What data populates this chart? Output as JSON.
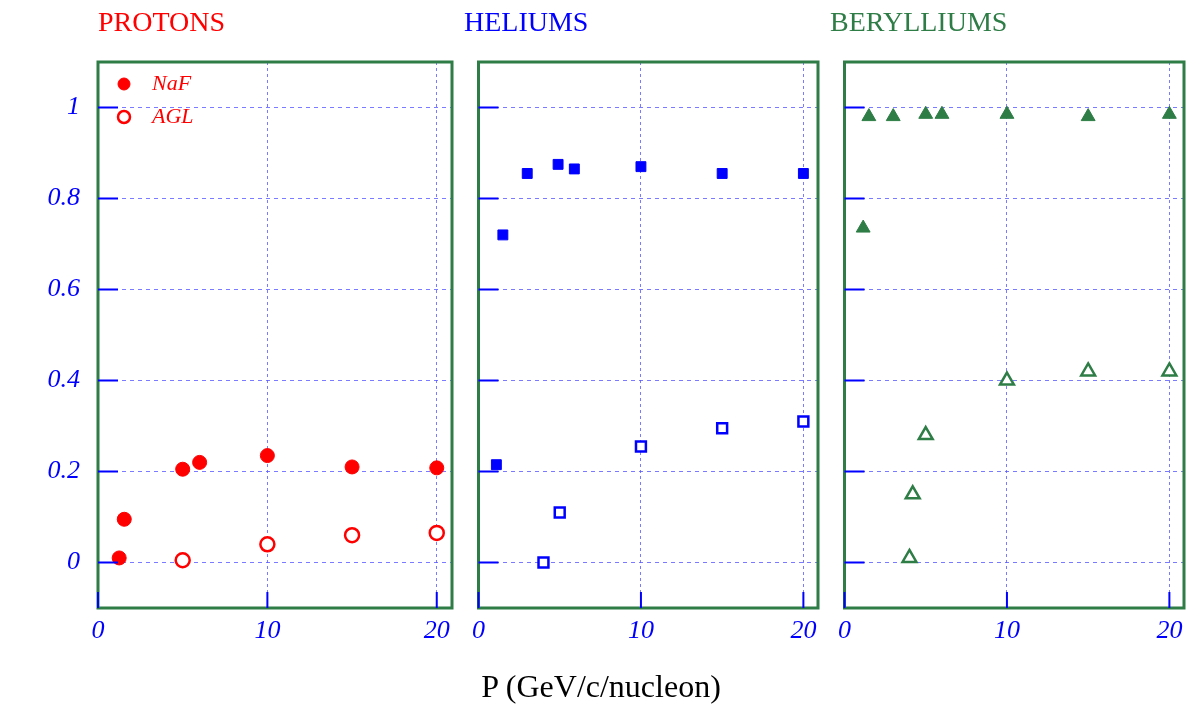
{
  "chart_data": [
    {
      "type": "scatter",
      "title": "PROTONS",
      "xlim": [
        0,
        20.9
      ],
      "xticks": [
        0,
        10,
        20
      ],
      "ylim": [
        -0.1,
        1.1
      ],
      "yticks": [
        0,
        0.2,
        0.4,
        0.6,
        0.8,
        1
      ],
      "grid": true,
      "legend": "top left",
      "series": [
        {
          "name": "NaF",
          "color": "#ff0000",
          "marker": "circle",
          "x": [
            1.25,
            1.55,
            5,
            6,
            10,
            15,
            20
          ],
          "values": [
            0.01,
            0.095,
            0.205,
            0.22,
            0.235,
            0.21,
            0.208
          ]
        },
        {
          "name": "AGL",
          "color": "#ff0000",
          "marker": "circle",
          "x": [
            5,
            10,
            15,
            20
          ],
          "values": [
            0.005,
            0.04,
            0.06,
            0.065
          ]
        }
      ]
    },
    {
      "type": "scatter",
      "title": "HELIUMS",
      "xlabel": "P (GeV/c/nucleon)",
      "xlim": [
        0,
        20.9
      ],
      "xticks": [
        0,
        10,
        20
      ],
      "ylim": [
        -0.1,
        1.1
      ],
      "yticks": [
        0,
        0.2,
        0.4,
        0.6,
        0.8,
        1
      ],
      "grid": true,
      "tick_labels": "x",
      "series": [
        {
          "color": "#0000ff",
          "marker": "square",
          "x": [
            1.1,
            1.5,
            3,
            4.9,
            5.9,
            10,
            15,
            20
          ],
          "values": [
            0.215,
            0.72,
            0.855,
            0.875,
            0.865,
            0.87,
            0.855,
            0.855
          ]
        },
        {
          "color": "#0000ff",
          "marker": "square",
          "x": [
            4,
            5,
            10,
            15,
            20
          ],
          "values": [
            0,
            0.11,
            0.255,
            0.295,
            0.31
          ]
        }
      ]
    },
    {
      "type": "scatter",
      "title": "BERYLLIUMS",
      "xlim": [
        0,
        20.9
      ],
      "xticks": [
        0,
        10,
        20
      ],
      "ylim": [
        -0.1,
        1.1
      ],
      "yticks": [
        0,
        0.2,
        0.4,
        0.6,
        0.8,
        1
      ],
      "grid": true,
      "tick_labels": "x",
      "series": [
        {
          "color": "#2e7d46",
          "marker": "triangle",
          "x": [
            1.15,
            1.5,
            3,
            5,
            6,
            10,
            15,
            20
          ],
          "values": [
            0.735,
            0.98,
            0.98,
            0.985,
            0.985,
            0.985,
            0.98,
            0.985
          ]
        },
        {
          "color": "#2e7d46",
          "marker": "triangle",
          "x": [
            4,
            4.2,
            5,
            10,
            15,
            20
          ],
          "values": [
            0.01,
            0.15,
            0.28,
            0.4,
            0.42,
            0.42
          ]
        }
      ]
    }
  ]
}
